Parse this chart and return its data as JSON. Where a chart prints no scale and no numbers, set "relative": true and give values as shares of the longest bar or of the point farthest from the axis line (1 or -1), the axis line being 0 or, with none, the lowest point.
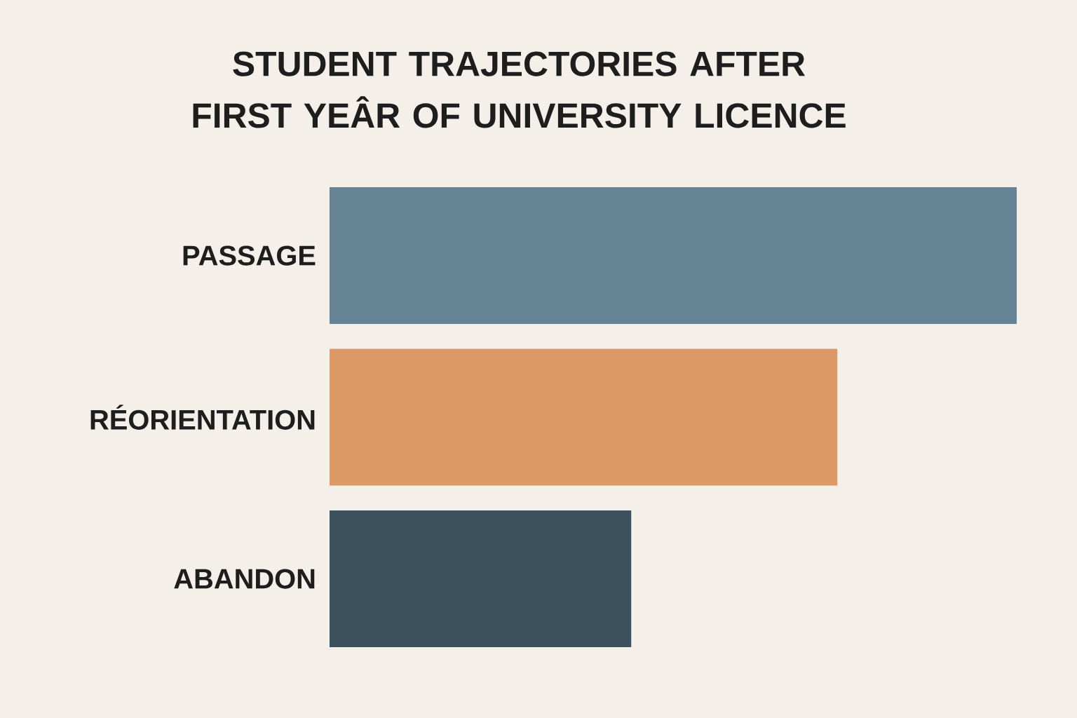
{
  "chart_data": {
    "type": "bar",
    "orientation": "horizontal",
    "relative": true,
    "title": "STUDENT TRAJECTORIES AFTER FIRST YEÂR OF UNIVERSITY LICENCE",
    "categories": [
      "PASSAGE",
      "RÉORIENTATION",
      "ABANDON"
    ],
    "values": [
      1,
      0.739,
      0.439
    ],
    "colors": [
      "#678396",
      "#dc9966",
      "#3c505e"
    ]
  }
}
